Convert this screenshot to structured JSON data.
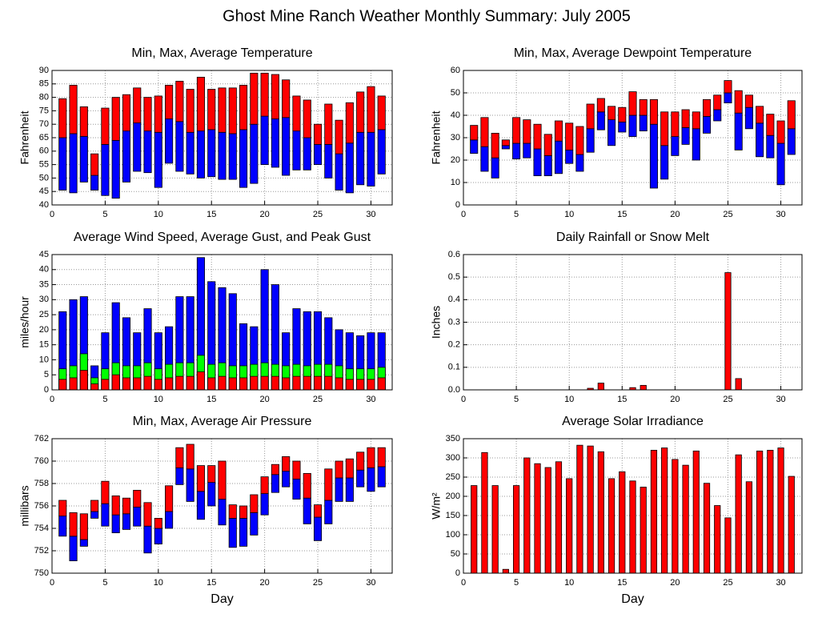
{
  "title": "Ghost Mine Ranch Weather Monthly Summary: July 2005",
  "chart_data": [
    {
      "type": "range",
      "title": "Min, Max, Average Temperature",
      "ylabel": "Fahrenheit",
      "x": [
        1,
        2,
        3,
        4,
        5,
        6,
        7,
        8,
        9,
        10,
        11,
        12,
        13,
        14,
        15,
        16,
        17,
        18,
        19,
        20,
        21,
        22,
        23,
        24,
        25,
        26,
        27,
        28,
        29,
        30,
        31
      ],
      "series": [
        {
          "values": [
            45.5,
            44.5,
            48.5,
            45.5,
            43.5,
            42.5,
            48.5,
            52.5,
            52,
            46.5,
            55.5,
            52.5,
            51.5,
            50,
            50.5,
            49.5,
            49.5,
            46.5,
            48,
            55,
            54,
            51,
            53,
            53,
            55,
            50,
            45.5,
            44.5,
            47.5,
            47,
            51.5
          ]
        },
        {
          "color": "#0000ff",
          "values": [
            65,
            66.5,
            65.5,
            51,
            62.5,
            64,
            67.5,
            70.5,
            67.5,
            67,
            72,
            71,
            67,
            67.5,
            68,
            67,
            66.5,
            68,
            70,
            73,
            72,
            72.5,
            67.5,
            65,
            62.5,
            62.5,
            59,
            63,
            67,
            67,
            68
          ]
        },
        {
          "color": "#ff0000",
          "values": [
            79.5,
            84.5,
            76.5,
            59,
            76,
            80,
            81,
            83.5,
            80,
            80.5,
            84.5,
            86,
            83,
            87.5,
            83,
            83.5,
            83.5,
            84.5,
            89,
            89,
            88.5,
            86.5,
            80.5,
            79,
            70,
            77.5,
            71.5,
            78,
            82,
            84,
            80.5
          ]
        }
      ],
      "xlim": [
        0,
        32
      ],
      "xticks": [
        0,
        5,
        10,
        15,
        20,
        25,
        30
      ],
      "ylim": [
        40,
        90
      ],
      "yticks": [
        40,
        45,
        50,
        55,
        60,
        65,
        70,
        75,
        80,
        85,
        90
      ],
      "grid": true
    },
    {
      "type": "range",
      "title": "Min, Max, Average Dewpoint Temperature",
      "ylabel": "Fahrenheit",
      "x": [
        1,
        2,
        3,
        4,
        5,
        6,
        7,
        8,
        9,
        10,
        11,
        12,
        13,
        14,
        15,
        16,
        17,
        18,
        19,
        20,
        21,
        22,
        23,
        24,
        25,
        26,
        27,
        28,
        29,
        30,
        31
      ],
      "series": [
        {
          "values": [
            23,
            15,
            12,
            25,
            20.5,
            21,
            13,
            13,
            14,
            18.5,
            15,
            23.5,
            33.5,
            26.5,
            32.5,
            30.5,
            33,
            7.5,
            11.5,
            22,
            27,
            20,
            32,
            37.5,
            45.5,
            24.5,
            34,
            21.5,
            21,
            9,
            22.5
          ]
        },
        {
          "color": "#0000ff",
          "values": [
            29,
            26,
            21,
            26.5,
            27.5,
            27.5,
            25,
            22,
            28.5,
            24.5,
            22.5,
            34,
            41.5,
            38,
            37,
            40,
            40,
            36,
            26.5,
            30.5,
            34.5,
            34,
            39.5,
            42.5,
            50,
            41,
            43.5,
            36.5,
            31,
            27.5,
            34
          ]
        },
        {
          "color": "#ff0000",
          "values": [
            35.5,
            39,
            32,
            29,
            39,
            38,
            36,
            31.5,
            37.5,
            36.5,
            35,
            45,
            47.5,
            44,
            43.5,
            50.5,
            47,
            47,
            41.5,
            41.5,
            42.5,
            41.5,
            47,
            49,
            55.5,
            51,
            49,
            44,
            40.5,
            37.5,
            46.5
          ]
        }
      ],
      "xlim": [
        0,
        32
      ],
      "xticks": [
        0,
        5,
        10,
        15,
        20,
        25,
        30
      ],
      "ylim": [
        0,
        60
      ],
      "yticks": [
        0,
        10,
        20,
        30,
        40,
        50,
        60
      ],
      "grid": true
    },
    {
      "type": "overlap",
      "title": "Average Wind Speed, Average Gust, and Peak Gust",
      "ylabel": "miles/hour",
      "x": [
        1,
        2,
        3,
        4,
        5,
        6,
        7,
        8,
        9,
        10,
        11,
        12,
        13,
        14,
        15,
        16,
        17,
        18,
        19,
        20,
        21,
        22,
        23,
        24,
        25,
        26,
        27,
        28,
        29,
        30,
        31
      ],
      "series": [
        {
          "color": "#0000ff",
          "values": [
            26,
            30,
            31,
            8,
            19,
            29,
            24,
            19,
            27,
            19,
            21,
            31,
            31,
            44,
            36,
            34,
            32,
            22,
            21,
            40,
            35,
            19,
            27,
            26,
            26,
            24,
            20,
            19,
            18,
            19,
            19
          ]
        },
        {
          "color": "#00ff00",
          "values": [
            7,
            8,
            12,
            4,
            7,
            9,
            8,
            8,
            9,
            7,
            8.5,
            9,
            9,
            11.5,
            8.5,
            9,
            8,
            8,
            8.5,
            9,
            8.5,
            8,
            8.5,
            8,
            8.5,
            8.5,
            8,
            7,
            7,
            7,
            7.5
          ]
        },
        {
          "color": "#ff0000",
          "values": [
            3.5,
            4,
            6.5,
            2,
            3.5,
            5,
            4,
            4,
            4.5,
            3.5,
            4,
            4.5,
            4.5,
            6,
            4,
            4.5,
            4,
            4,
            4.5,
            4.5,
            4.5,
            4,
            4.5,
            4.5,
            4.5,
            4.5,
            4,
            3.5,
            3.5,
            3.5,
            4
          ]
        }
      ],
      "xlim": [
        0,
        32
      ],
      "xticks": [
        0,
        5,
        10,
        15,
        20,
        25,
        30
      ],
      "ylim": [
        0,
        45
      ],
      "yticks": [
        0,
        5,
        10,
        15,
        20,
        25,
        30,
        35,
        40,
        45
      ],
      "grid": true
    },
    {
      "type": "bar",
      "title": "Daily Rainfall or Snow Melt",
      "ylabel": "Inches",
      "color": "#ff0000",
      "x": [
        1,
        2,
        3,
        4,
        5,
        6,
        7,
        8,
        9,
        10,
        11,
        12,
        13,
        14,
        15,
        16,
        17,
        18,
        19,
        20,
        21,
        22,
        23,
        24,
        25,
        26,
        27,
        28,
        29,
        30,
        31
      ],
      "values": [
        0,
        0,
        0,
        0,
        0,
        0,
        0,
        0,
        0,
        0,
        0,
        0.007,
        0.03,
        0,
        0,
        0.01,
        0.02,
        0,
        0,
        0,
        0,
        0,
        0,
        0,
        0.52,
        0.05,
        0,
        0,
        0,
        0,
        0
      ],
      "xlim": [
        0,
        32
      ],
      "xticks": [
        0,
        5,
        10,
        15,
        20,
        25,
        30
      ],
      "ylim": [
        0,
        0.6
      ],
      "yticks": [
        {
          "value": 0,
          "label": "0.0"
        },
        0.1,
        0.2,
        0.3,
        0.4,
        0.5,
        0.6
      ],
      "grid": true
    },
    {
      "type": "range",
      "title": "Min, Max, Average Air Pressure",
      "ylabel": "millibars",
      "xlabel": "Day",
      "x": [
        1,
        2,
        3,
        4,
        5,
        6,
        7,
        8,
        9,
        10,
        11,
        12,
        13,
        14,
        15,
        16,
        17,
        18,
        19,
        20,
        21,
        22,
        23,
        24,
        25,
        26,
        27,
        28,
        29,
        30,
        31
      ],
      "series": [
        {
          "values": [
            753.3,
            751.1,
            752.4,
            754.9,
            754.2,
            753.6,
            753.9,
            754.2,
            751.8,
            752.6,
            754.0,
            757.9,
            756.4,
            754.8,
            756.0,
            754.3,
            752.3,
            752.4,
            753.4,
            755.2,
            757.2,
            757.7,
            756.6,
            754.4,
            752.9,
            754.4,
            756.4,
            756.4,
            757.7,
            757.3,
            757.7
          ]
        },
        {
          "color": "#0000ff",
          "values": [
            755.1,
            753.3,
            753.0,
            755.5,
            756.2,
            755.2,
            755.3,
            755.9,
            754.2,
            754.0,
            755.5,
            759.4,
            759.3,
            757.3,
            758.1,
            756.6,
            754.9,
            754.9,
            755.4,
            757.1,
            758.8,
            759.1,
            758.4,
            756.7,
            755.0,
            756.5,
            758.5,
            758.5,
            759.2,
            759.4,
            759.5
          ]
        },
        {
          "color": "#ff0000",
          "values": [
            756.5,
            755.4,
            755.3,
            756.5,
            758.2,
            756.9,
            756.7,
            757.4,
            756.3,
            754.9,
            757.8,
            761.2,
            761.5,
            759.6,
            759.6,
            760.0,
            756.1,
            756.0,
            757.0,
            758.6,
            759.7,
            760.4,
            760.0,
            758.9,
            756.1,
            759.3,
            760.0,
            760.2,
            760.8,
            761.2,
            761.2
          ]
        }
      ],
      "xlim": [
        0,
        32
      ],
      "xticks": [
        0,
        5,
        10,
        15,
        20,
        25,
        30
      ],
      "ylim": [
        750,
        762
      ],
      "yticks": [
        750,
        752,
        754,
        756,
        758,
        760,
        762
      ],
      "grid": true
    },
    {
      "type": "bar",
      "title": "Average Solar Irradiance",
      "ylabel": "W/m²",
      "xlabel": "Day",
      "color": "#ff0000",
      "x": [
        1,
        2,
        3,
        4,
        5,
        6,
        7,
        8,
        9,
        10,
        11,
        12,
        13,
        14,
        15,
        16,
        17,
        18,
        19,
        20,
        21,
        22,
        23,
        24,
        25,
        26,
        27,
        28,
        29,
        30,
        31
      ],
      "values": [
        228,
        314,
        228,
        10,
        228,
        300,
        285,
        275,
        290,
        246,
        333,
        331,
        316,
        246,
        264,
        240,
        224,
        320,
        326,
        296,
        281,
        318,
        234,
        176,
        144,
        308,
        238,
        318,
        320,
        326,
        252
      ],
      "xlim": [
        0,
        32
      ],
      "xticks": [
        0,
        5,
        10,
        15,
        20,
        25,
        30
      ],
      "ylim": [
        0,
        350
      ],
      "yticks": [
        0,
        50,
        100,
        150,
        200,
        250,
        300,
        350
      ],
      "grid": true
    }
  ]
}
